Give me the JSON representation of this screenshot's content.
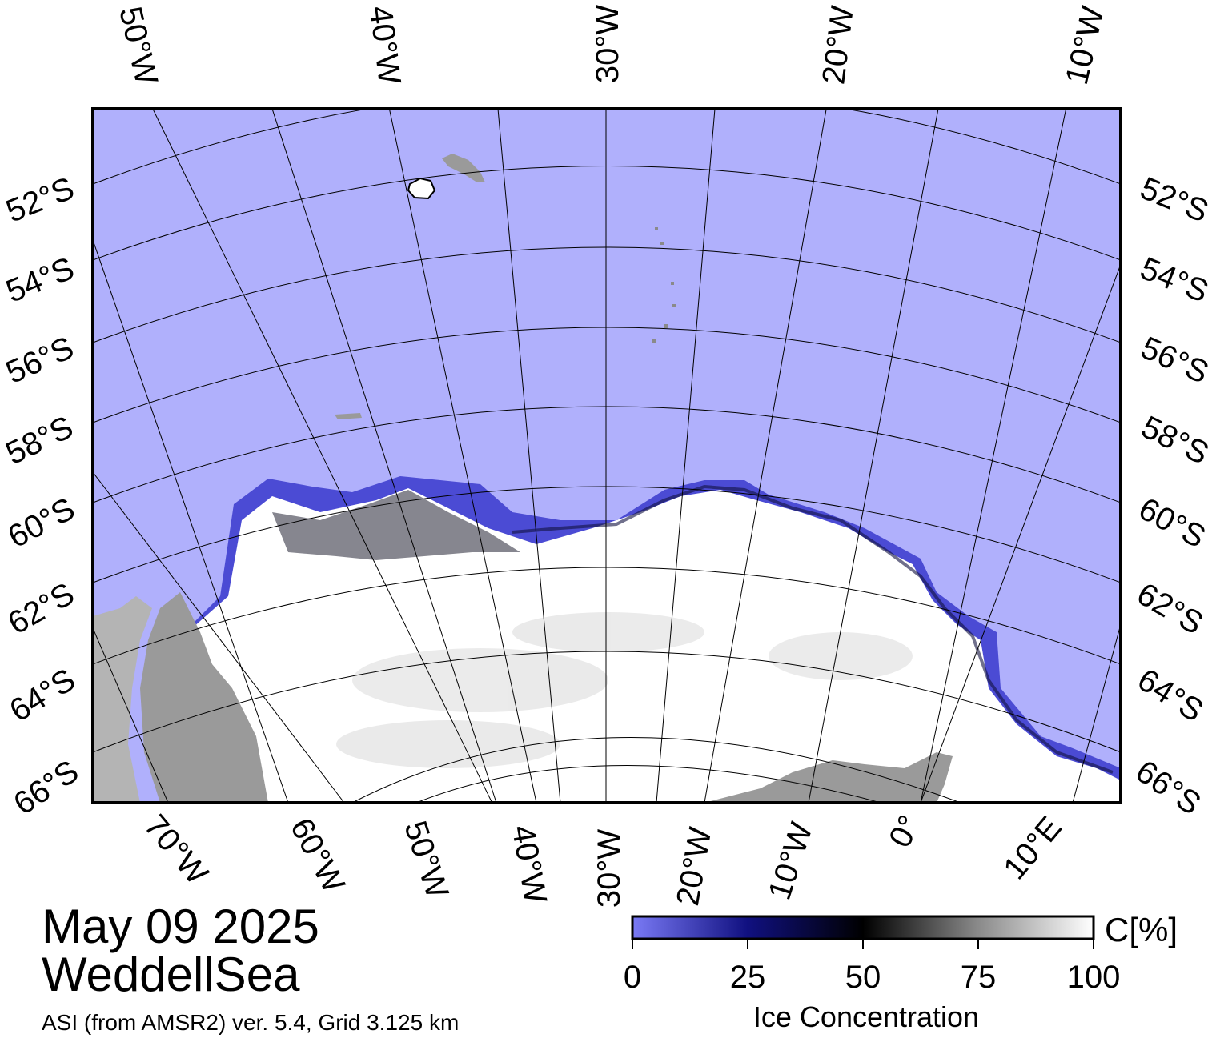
{
  "title": {
    "date": "May 09 2025",
    "region": "WeddellSea"
  },
  "source": "ASI (from AMSR2) ver. 5.4,  Grid 3.125 km",
  "colors": {
    "ocean": "#b0b0fc",
    "land": "#9a9a9a",
    "land_light": "#b4b4b4",
    "ice_full": "#ffffff",
    "ice_low": "#5a5ae6",
    "ice_mid": "#000040",
    "grid": "#000000"
  },
  "map": {
    "top_lon_labels": [
      "50°W",
      "40°W",
      "30°W",
      "20°W",
      "10°W"
    ],
    "bottom_lon_labels": [
      "70°W",
      "60°W",
      "50°W",
      "40°W",
      "30°W",
      "20°W",
      "10°W",
      "0°",
      "10°E"
    ],
    "left_lat_labels": [
      "52°S",
      "54°S",
      "56°S",
      "58°S",
      "60°S",
      "62°S",
      "64°S",
      "66°S"
    ],
    "right_lat_labels": [
      "52°S",
      "54°S",
      "56°S",
      "58°S",
      "60°S",
      "62°S",
      "64°S",
      "66°S"
    ]
  },
  "colorbar": {
    "title": "Ice Concentration",
    "unit": "C[%]",
    "ticks": [
      "0",
      "25",
      "50",
      "75",
      "100"
    ],
    "range": [
      0,
      100
    ]
  }
}
